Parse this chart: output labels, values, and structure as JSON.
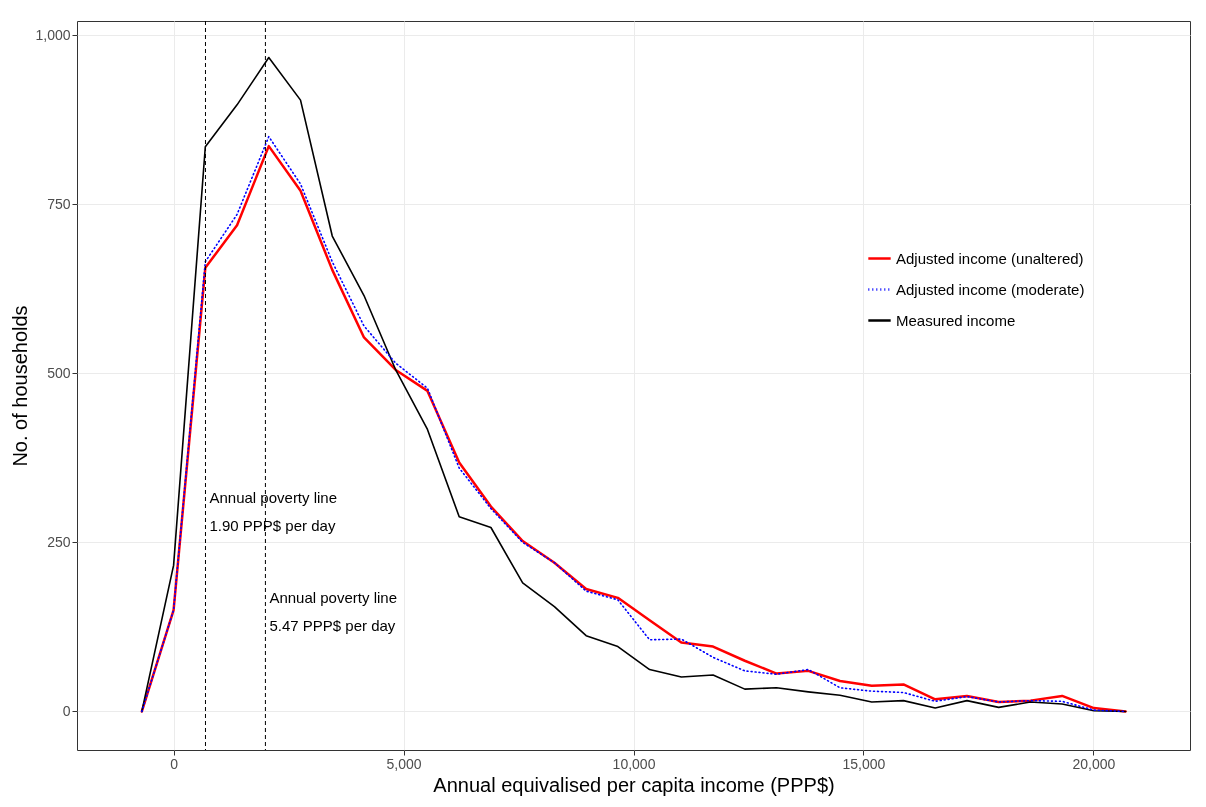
{
  "chart_data": {
    "type": "line",
    "xlabel": "Annual equivalised per capita income (PPP$)",
    "ylabel": "No. of households",
    "x": [
      -690,
      0,
      690,
      1380,
      2070,
      2760,
      3450,
      4140,
      4830,
      5520,
      6210,
      6900,
      7590,
      8280,
      8970,
      9660,
      10350,
      11040,
      11730,
      12420,
      13110,
      13800,
      14490,
      15180,
      15870,
      16560,
      17250,
      17940,
      18630,
      19320,
      20010,
      20700
    ],
    "series": [
      {
        "name": "Adjusted income (unaltered)",
        "color": "#ff0000",
        "line_style": "solid",
        "values": [
          0,
          150,
          656,
          719,
          836,
          770,
          653,
          553,
          505,
          474,
          368,
          303,
          252,
          220,
          181,
          168,
          135,
          102,
          96,
          75,
          56,
          60,
          45,
          38,
          40,
          18,
          23,
          14,
          16,
          23,
          5,
          0
        ]
      },
      {
        "name": "Adjusted income (moderate)",
        "color": "#0000ff",
        "line_style": "dotted",
        "values": [
          0,
          150,
          665,
          735,
          850,
          780,
          665,
          570,
          515,
          478,
          360,
          300,
          250,
          220,
          178,
          165,
          106,
          107,
          80,
          60,
          55,
          62,
          35,
          30,
          28,
          15,
          22,
          14,
          16,
          15,
          2,
          0
        ]
      },
      {
        "name": "Measured income",
        "color": "#000000",
        "line_style": "solid",
        "values": [
          0,
          216,
          835,
          897,
          967,
          904,
          703,
          615,
          505,
          417,
          288,
          272,
          190,
          155,
          112,
          96,
          62,
          51,
          54,
          33,
          35,
          29,
          24,
          14,
          16,
          5,
          16,
          6,
          14,
          11,
          1,
          0
        ]
      }
    ],
    "xlim": [
      -2100,
      22100
    ],
    "ylim": [
      -57,
      1021
    ],
    "xticks": [
      0,
      {
        "value": 5000,
        "label": "5,000"
      },
      {
        "value": 10000,
        "label": "10,000"
      },
      {
        "value": 15000,
        "label": "15,000"
      },
      {
        "value": 20000,
        "label": "20,000"
      }
    ],
    "yticks": [
      0,
      250,
      500,
      750,
      {
        "value": 1000,
        "label": "1,000"
      }
    ],
    "ref_lines": [
      {
        "axis": "x",
        "value": 693.5,
        "label": "Annual poverty line\n1.90 PPP$ per day",
        "color": "#000000",
        "line_style": "dashed"
      },
      {
        "axis": "x",
        "value": 1996.55,
        "label": "Annual poverty line\n5.47 PPP$ per day",
        "color": "#000000",
        "line_style": "dashed"
      }
    ],
    "grid": true,
    "legend": "right"
  }
}
